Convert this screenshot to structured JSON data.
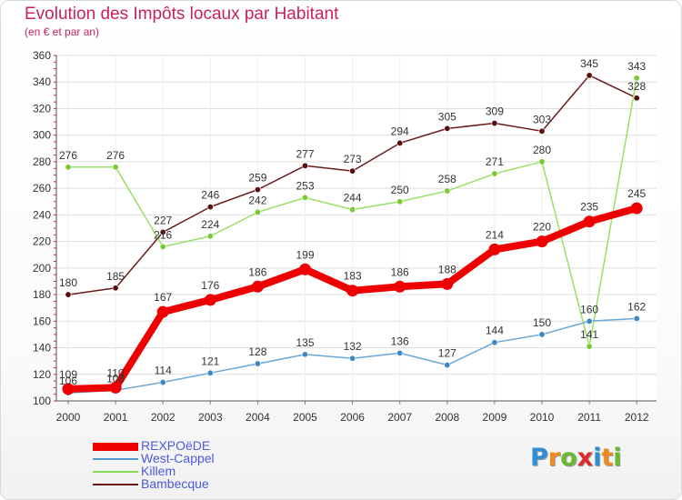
{
  "header": {
    "title": "Evolution des Impôts locaux par Habitant",
    "subtitle": "(en € et par an)"
  },
  "chart_data": {
    "type": "line",
    "title": "Evolution des Impôts locaux par Habitant",
    "subtitle": "(en € et par an)",
    "x": [
      "2000",
      "2001",
      "2002",
      "2003",
      "2004",
      "2005",
      "2006",
      "2007",
      "2008",
      "2009",
      "2010",
      "2011",
      "2012"
    ],
    "ylim": [
      100,
      360
    ],
    "yticks": [
      100,
      120,
      140,
      160,
      180,
      200,
      220,
      240,
      260,
      280,
      300,
      320,
      340,
      360
    ],
    "grid": true,
    "legend_position": "bottom-left",
    "series": [
      {
        "name": "Bambecque",
        "color": "#6b1a1a",
        "values": [
          180,
          185,
          227,
          246,
          259,
          277,
          273,
          294,
          305,
          309,
          303,
          345,
          328
        ]
      },
      {
        "name": "Killem",
        "color": "#88dd55",
        "values": [
          276,
          276,
          216,
          224,
          242,
          253,
          244,
          250,
          258,
          271,
          280,
          141,
          343
        ]
      },
      {
        "name": "West-Cappel",
        "color": "#5599cc",
        "values": [
          106,
          108,
          114,
          121,
          128,
          135,
          132,
          136,
          127,
          144,
          150,
          160,
          162
        ]
      },
      {
        "name": "REXPOëDE",
        "color": "#ee0000",
        "values": [
          109,
          110,
          167,
          176,
          186,
          199,
          183,
          186,
          188,
          214,
          220,
          235,
          245
        ]
      }
    ],
    "legend_order": [
      "REXPOëDE",
      "West-Cappel",
      "Killem",
      "Bambecque"
    ]
  },
  "logo": {
    "letters": [
      "P",
      "r",
      "o",
      "x",
      "i",
      "t",
      "i"
    ],
    "colors": [
      "#2e8fd8",
      "#f08a1c",
      "#6ab82e",
      "#e02a2a",
      "#2e8fd8",
      "#f08a1c",
      "#6ab82e"
    ]
  }
}
